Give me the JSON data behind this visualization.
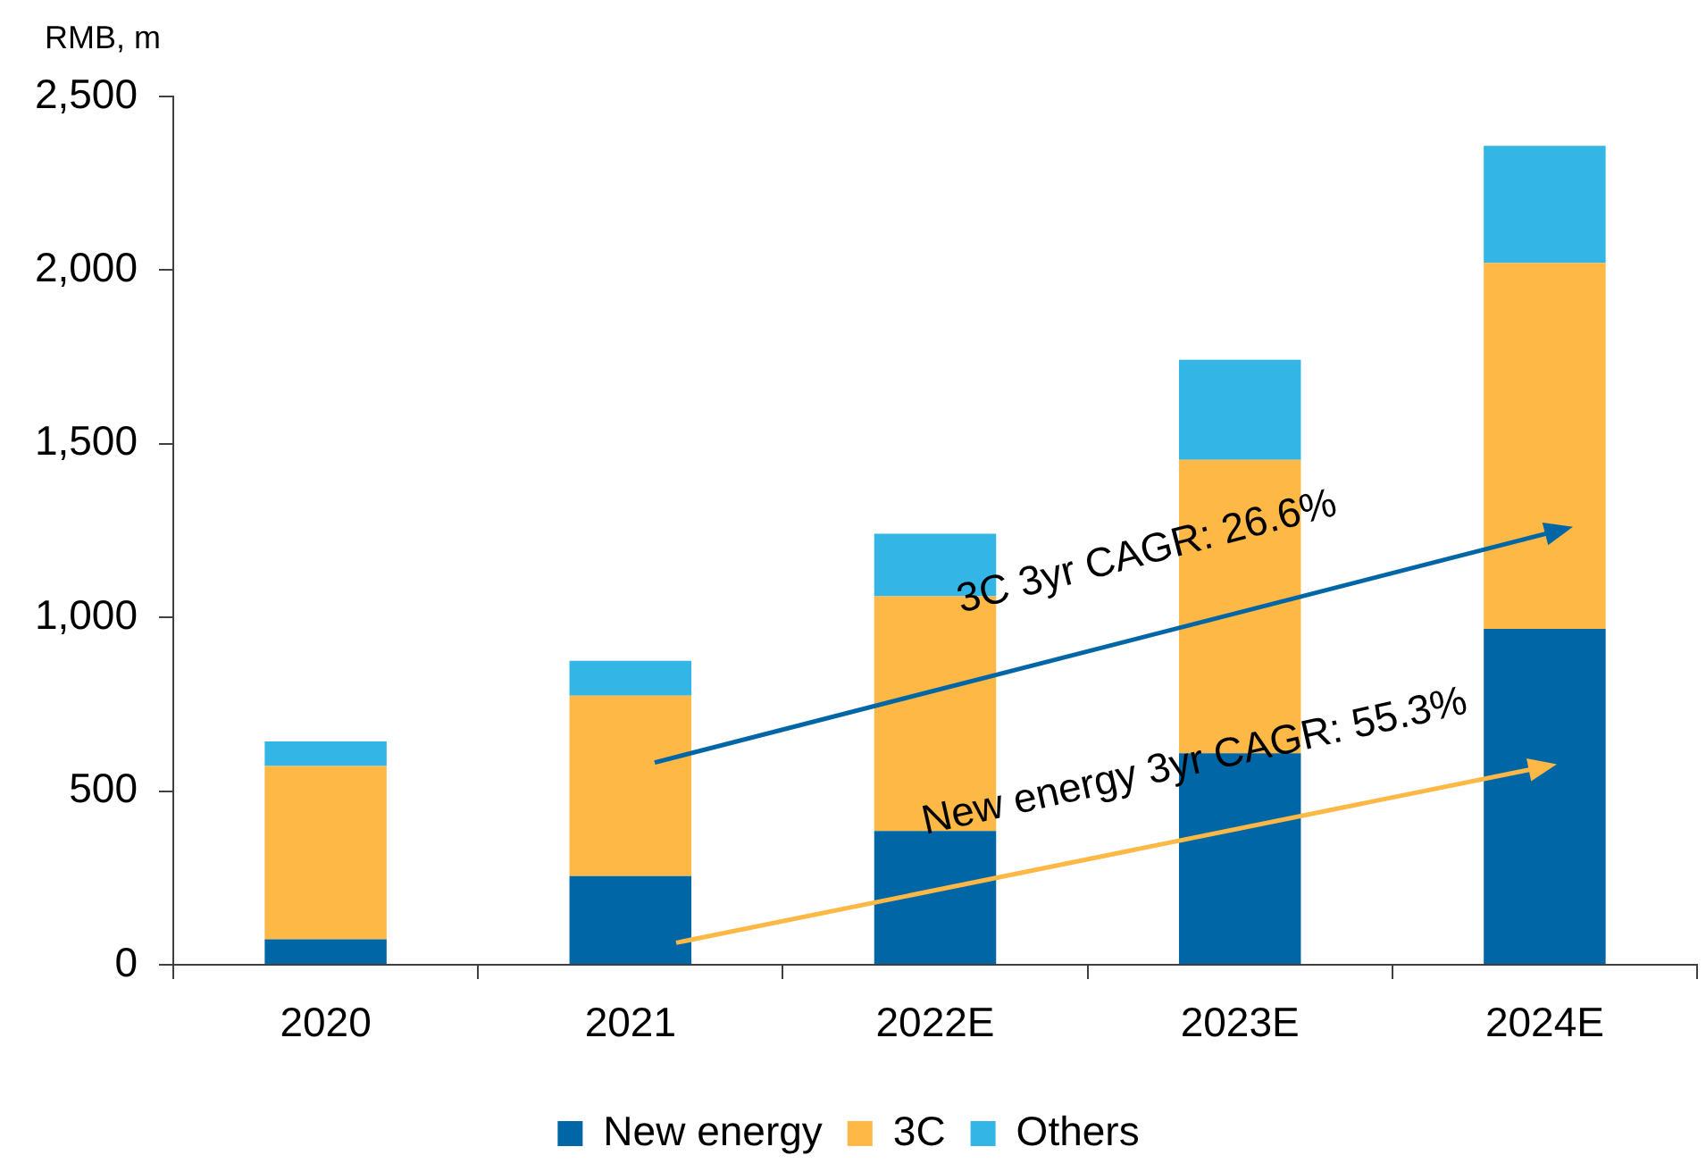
{
  "chart_data": {
    "type": "bar",
    "stacked": true,
    "ylabel": "RMB, m",
    "categories": [
      "2020",
      "2021",
      "2022E",
      "2023E",
      "2024E"
    ],
    "series": [
      {
        "name": "New energy",
        "color": "#0066a5",
        "values": [
          73,
          255,
          385,
          609,
          967
        ]
      },
      {
        "name": "3C",
        "color": "#fdb845",
        "values": [
          499,
          520,
          676,
          845,
          1054
        ]
      },
      {
        "name": "Others",
        "color": "#33b5e5",
        "values": [
          71,
          100,
          180,
          288,
          337
        ]
      }
    ],
    "ylim": [
      0,
      2500
    ],
    "yticks": [
      0,
      500,
      {
        "value": 1000,
        "label": "1,000"
      },
      {
        "value": 1500,
        "label": "1,500"
      },
      {
        "value": 2000,
        "label": "2,000"
      },
      {
        "value": 2500,
        "label": "2,500"
      }
    ],
    "grid": false,
    "legend": "bottom",
    "annotations": [
      "3C 3yr CAGR: 26.6%",
      "New energy 3yr CAGR: 55.3%"
    ]
  }
}
